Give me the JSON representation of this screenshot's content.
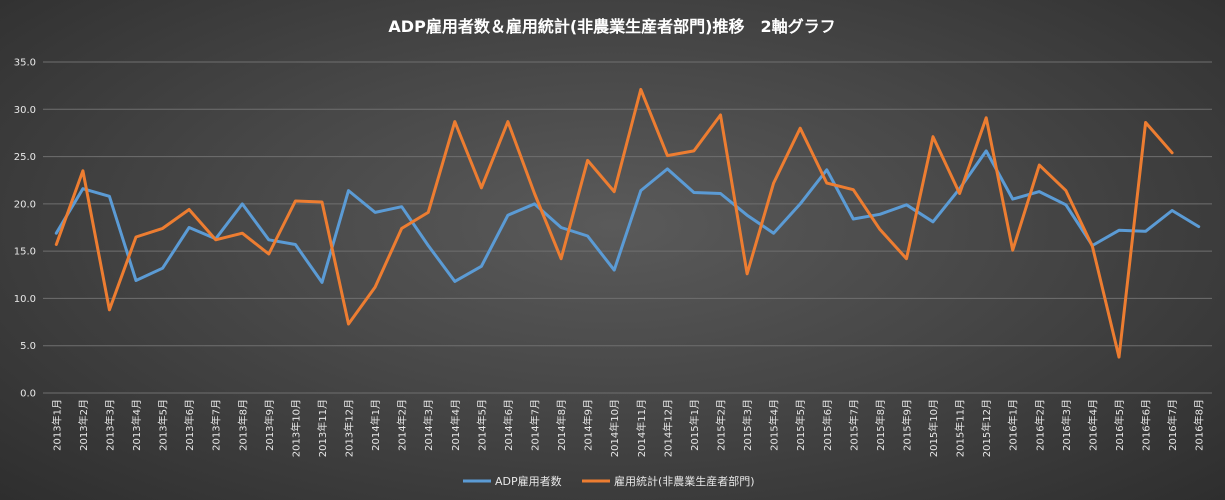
{
  "chart_data": {
    "type": "line",
    "title": "ADP雇用者数＆雇用統計(非農業生産者部門)推移　2軸グラフ",
    "ylim": [
      0,
      35
    ],
    "yticks": [
      "0.0",
      "5.0",
      "10.0",
      "15.0",
      "20.0",
      "25.0",
      "30.0",
      "35.0"
    ],
    "grid": true,
    "legend_position": "bottom",
    "categories": [
      "2013年1月",
      "2013年2月",
      "2013年3月",
      "2013年4月",
      "2013年5月",
      "2013年6月",
      "2013年7月",
      "2013年8月",
      "2013年9月",
      "2013年10月",
      "2013年11月",
      "2013年12月",
      "2014年1月",
      "2014年2月",
      "2014年3月",
      "2014年4月",
      "2014年5月",
      "2014年6月",
      "2014年7月",
      "2014年8月",
      "2014年9月",
      "2014年10月",
      "2014年11月",
      "2014年12月",
      "2015年1月",
      "2015年2月",
      "2015年3月",
      "2015年4月",
      "2015年5月",
      "2015年6月",
      "2015年7月",
      "2015年8月",
      "2015年9月",
      "2015年10月",
      "2015年11月",
      "2015年12月",
      "2016年1月",
      "2016年2月",
      "2016年3月",
      "2016年4月",
      "2016年5月",
      "2016年6月",
      "2016年7月",
      "2016年8月"
    ],
    "series": [
      {
        "name": "ADP雇用者数",
        "color": "#5b9bd5",
        "values": [
          16.9,
          21.6,
          20.8,
          11.9,
          13.2,
          17.5,
          16.3,
          20.0,
          16.2,
          15.7,
          11.7,
          21.4,
          19.1,
          19.7,
          15.6,
          11.8,
          13.4,
          18.8,
          20.0,
          17.5,
          16.6,
          13.0,
          21.4,
          23.7,
          21.2,
          21.1,
          18.8,
          16.9,
          20.0,
          23.6,
          18.4,
          18.9,
          19.9,
          18.1,
          21.6,
          25.6,
          20.5,
          21.3,
          19.9,
          15.6,
          17.2,
          17.1,
          19.3,
          17.6
        ]
      },
      {
        "name": "雇用統計(非農業生産者部門)",
        "color": "#ed7d31",
        "values": [
          15.7,
          23.5,
          8.8,
          16.5,
          17.4,
          19.4,
          16.2,
          16.9,
          14.7,
          20.3,
          20.2,
          7.3,
          11.2,
          17.4,
          19.1,
          28.7,
          21.7,
          28.7,
          21.1,
          14.2,
          24.6,
          21.3,
          32.1,
          25.1,
          25.6,
          29.4,
          12.6,
          22.2,
          28.0,
          22.2,
          21.5,
          17.3,
          14.2,
          27.1,
          21.1,
          29.1,
          15.1,
          24.1,
          21.4,
          15.5,
          3.8,
          28.6,
          25.4,
          null
        ]
      }
    ]
  }
}
